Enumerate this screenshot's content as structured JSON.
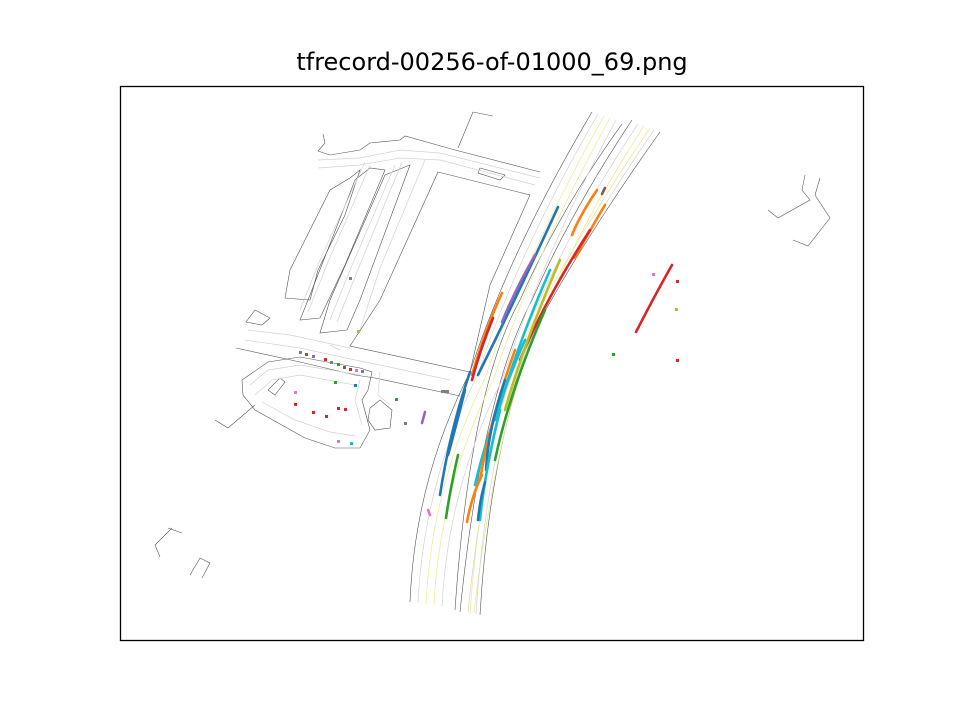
{
  "figure": {
    "title": "tfrecord-00256-of-01000_69.png"
  },
  "chart_data": {
    "type": "scatter",
    "title": "tfrecord-00256-of-01000_69.png",
    "xlabel": "",
    "ylabel": "",
    "axes_ticks": "none",
    "grid": false,
    "series": [],
    "colors": {
      "road_edge": "#555555",
      "lane_line": "#d2d2d2",
      "lane_yellow": "#f0e68c",
      "blue": "#1f77b4",
      "orange": "#ff7f0e",
      "green": "#2ca02c",
      "red": "#d62728",
      "purple": "#9467bd",
      "brown": "#8c564b",
      "pink": "#e377c2",
      "gray": "#7f7f7f",
      "olive": "#bcbd22",
      "cyan": "#17becf"
    }
  }
}
